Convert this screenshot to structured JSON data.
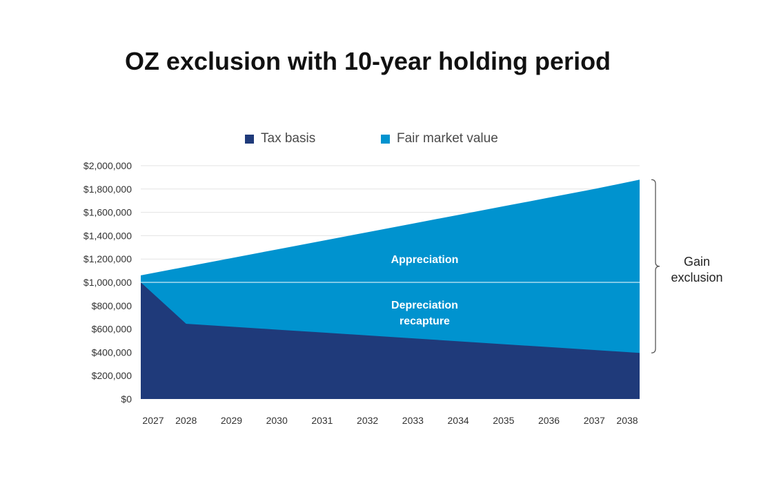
{
  "chart_data": {
    "type": "area",
    "title": "OZ exclusion with 10-year holding period",
    "categories": [
      "2027",
      "2028",
      "2029",
      "2030",
      "2031",
      "2032",
      "2033",
      "2034",
      "2035",
      "2036",
      "2037",
      "2038"
    ],
    "series": [
      {
        "name": "Tax basis",
        "values": [
          1000000,
          645000,
          620000,
          595000,
          570000,
          545000,
          520000,
          495000,
          470000,
          445000,
          420000,
          395000
        ]
      },
      {
        "name": "Fair market value",
        "values": [
          1060000,
          1134000,
          1208000,
          1282000,
          1356000,
          1430000,
          1504000,
          1578000,
          1652000,
          1726000,
          1800000,
          1880000
        ]
      }
    ],
    "ylim": [
      0,
      2000000
    ],
    "yticks": [
      "$0",
      "$200,000",
      "$400,000",
      "$600,000",
      "$800,000",
      "$1,000,000",
      "$1,200,000",
      "$1,400,000",
      "$1,600,000",
      "$1,800,000",
      "$2,000,000"
    ],
    "reference_line": 1000000,
    "annotations": {
      "appreciation": "Appreciation",
      "depreciation_line1": "Depreciation",
      "depreciation_line2": "recapture",
      "gain_line1": "Gain",
      "gain_line2": "exclusion"
    },
    "grid": true,
    "legend_position": "top"
  },
  "colors": {
    "tax_basis": "#1f3a7a",
    "fair_market_value": "#0093cf",
    "grid": "#e3e3e3",
    "bracket": "#555555"
  }
}
